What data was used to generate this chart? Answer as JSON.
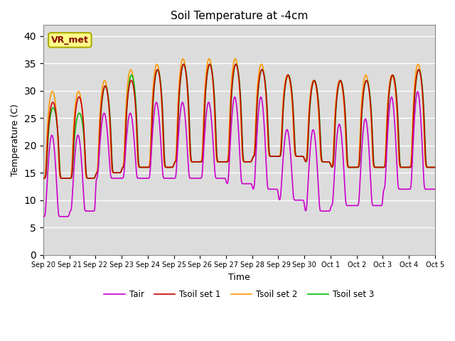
{
  "title": "Soil Temperature at -4cm",
  "xlabel": "Time",
  "ylabel": "Temperature (C)",
  "ylim": [
    0,
    42
  ],
  "yticks": [
    0,
    5,
    10,
    15,
    20,
    25,
    30,
    35,
    40
  ],
  "bg_color": "#dcdcdc",
  "fig_color": "#ffffff",
  "annotation_text": "VR_met",
  "annotation_box_color": "#ffff88",
  "annotation_text_color": "#880000",
  "line_colors": {
    "Tair": "#cc00cc",
    "Tsoil set 1": "#cc0000",
    "Tsoil set 2": "#ff9900",
    "Tsoil set 3": "#00bb00"
  },
  "legend_loc": "lower center",
  "legend_ncol": 4,
  "x_tick_labels": [
    "Sep 20",
    "Sep 21",
    "Sep 22",
    "Sep 23",
    "Sep 24",
    "Sep 25",
    "Sep 26",
    "Sep 27",
    "Sep 28",
    "Sep 29",
    "Sep 30",
    "Oct 1",
    "Oct 2",
    "Oct 3",
    "Oct 4",
    "Oct 5"
  ],
  "n_days": 15,
  "pts_per_day": 144,
  "day_specs": [
    {
      "tair_min": 7,
      "tair_max": 22,
      "ts_min": 14,
      "ts1_max": 28,
      "ts2_max": 30,
      "ts3_max": 27
    },
    {
      "tair_min": 8,
      "tair_max": 22,
      "ts_min": 14,
      "ts1_max": 29,
      "ts2_max": 30,
      "ts3_max": 26
    },
    {
      "tair_min": 14,
      "tair_max": 26,
      "ts_min": 15,
      "ts1_max": 31,
      "ts2_max": 32,
      "ts3_max": 31
    },
    {
      "tair_min": 14,
      "tair_max": 26,
      "ts_min": 16,
      "ts1_max": 32,
      "ts2_max": 34,
      "ts3_max": 33
    },
    {
      "tair_min": 14,
      "tair_max": 28,
      "ts_min": 16,
      "ts1_max": 34,
      "ts2_max": 35,
      "ts3_max": 34
    },
    {
      "tair_min": 14,
      "tair_max": 28,
      "ts_min": 17,
      "ts1_max": 35,
      "ts2_max": 36,
      "ts3_max": 35
    },
    {
      "tair_min": 14,
      "tair_max": 28,
      "ts_min": 17,
      "ts1_max": 35,
      "ts2_max": 36,
      "ts3_max": 35
    },
    {
      "tair_min": 13,
      "tair_max": 29,
      "ts_min": 17,
      "ts1_max": 35,
      "ts2_max": 36,
      "ts3_max": 35
    },
    {
      "tair_min": 12,
      "tair_max": 29,
      "ts_min": 18,
      "ts1_max": 34,
      "ts2_max": 35,
      "ts3_max": 34
    },
    {
      "tair_min": 10,
      "tair_max": 23,
      "ts_min": 18,
      "ts1_max": 33,
      "ts2_max": 33,
      "ts3_max": 33
    },
    {
      "tair_min": 8,
      "tair_max": 23,
      "ts_min": 17,
      "ts1_max": 32,
      "ts2_max": 32,
      "ts3_max": 32
    },
    {
      "tair_min": 9,
      "tair_max": 24,
      "ts_min": 16,
      "ts1_max": 32,
      "ts2_max": 32,
      "ts3_max": 32
    },
    {
      "tair_min": 9,
      "tair_max": 25,
      "ts_min": 16,
      "ts1_max": 32,
      "ts2_max": 33,
      "ts3_max": 32
    },
    {
      "tair_min": 12,
      "tair_max": 29,
      "ts_min": 16,
      "ts1_max": 33,
      "ts2_max": 33,
      "ts3_max": 33
    },
    {
      "tair_min": 12,
      "tair_max": 30,
      "ts_min": 16,
      "ts1_max": 34,
      "ts2_max": 35,
      "ts3_max": 34
    }
  ]
}
